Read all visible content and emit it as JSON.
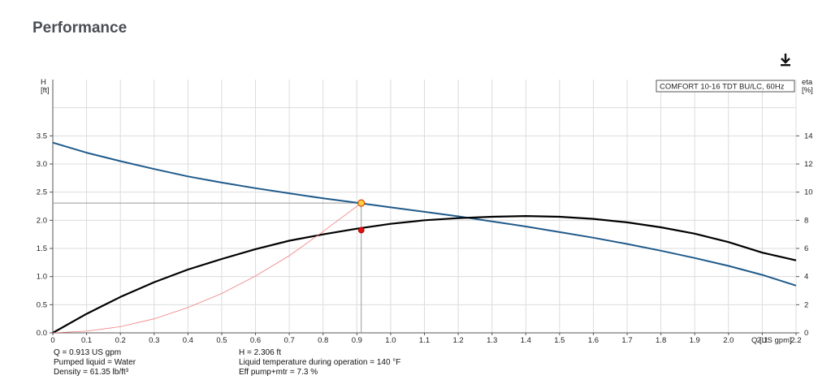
{
  "page": {
    "title": "Performance"
  },
  "icons": {
    "download": "download-icon"
  },
  "chart_data": {
    "type": "line",
    "legend": "COMFORT 10-16 TDT BU/LC, 60Hz",
    "xlabel": "Q [US gpm]",
    "ylabel_left": [
      "H",
      "[ft]"
    ],
    "ylabel_right": [
      "eta",
      "[%]"
    ],
    "xlim": [
      0,
      2.2
    ],
    "ylim_left": [
      0,
      4.5
    ],
    "ylim_right": [
      0,
      18
    ],
    "grid": true,
    "x_ticks": [
      0,
      0.1,
      0.2,
      0.3,
      0.4,
      0.5,
      0.6,
      0.7,
      0.8,
      0.9,
      1.0,
      1.1,
      1.2,
      1.3,
      1.4,
      1.5,
      1.6,
      1.7,
      1.8,
      1.9,
      2.0,
      2.1,
      2.2
    ],
    "x_tick_labels": [
      "0",
      "0.1",
      "0.2",
      "0.3",
      "0.4",
      "0.5",
      "0.6",
      "0.7",
      "0.8",
      "0.9",
      "1.0",
      "1.1",
      "1.2",
      "1.3",
      "1.4",
      "1.5",
      "1.6",
      "1.7",
      "1.8",
      "1.9",
      "2.0",
      "2.1",
      "2.2"
    ],
    "y_left_ticks": [
      0,
      0.5,
      1.0,
      1.5,
      2.0,
      2.5,
      3.0,
      3.5
    ],
    "y_left_tick_labels": [
      "0.0",
      "0.5",
      "1.0",
      "1.5",
      "2.0",
      "2.5",
      "3.0",
      "3.5"
    ],
    "y_right_ticks": [
      0,
      2,
      4,
      6,
      8,
      10,
      12,
      14
    ],
    "y_right_tick_labels": [
      "0",
      "2",
      "4",
      "6",
      "8",
      "10",
      "12",
      "14"
    ],
    "series": [
      {
        "axis": "left",
        "color": "#1f5a8a",
        "x": [
          0,
          0.1,
          0.2,
          0.3,
          0.4,
          0.5,
          0.6,
          0.7,
          0.8,
          0.9,
          1.0,
          1.1,
          1.2,
          1.3,
          1.4,
          1.5,
          1.6,
          1.7,
          1.8,
          1.9,
          2.0,
          2.1,
          2.2
        ],
        "y": [
          3.38,
          3.2,
          3.05,
          2.91,
          2.78,
          2.67,
          2.57,
          2.48,
          2.39,
          2.31,
          2.23,
          2.15,
          2.07,
          1.98,
          1.89,
          1.79,
          1.69,
          1.58,
          1.46,
          1.33,
          1.19,
          1.03,
          0.84
        ]
      },
      {
        "axis": "right",
        "color": "#000000",
        "x": [
          0,
          0.1,
          0.2,
          0.3,
          0.4,
          0.5,
          0.6,
          0.7,
          0.8,
          0.9,
          1.0,
          1.1,
          1.2,
          1.3,
          1.4,
          1.5,
          1.6,
          1.7,
          1.8,
          1.9,
          2.0,
          2.1,
          2.2
        ],
        "y": [
          0,
          1.35,
          2.55,
          3.6,
          4.5,
          5.25,
          5.95,
          6.55,
          7.0,
          7.4,
          7.75,
          8.0,
          8.15,
          8.25,
          8.3,
          8.25,
          8.1,
          7.85,
          7.5,
          7.05,
          6.45,
          5.7,
          5.15
        ]
      },
      {
        "axis": "left",
        "color": "#f08080",
        "x": [
          0,
          0.1,
          0.2,
          0.3,
          0.4,
          0.5,
          0.6,
          0.7,
          0.8,
          0.913
        ],
        "y": [
          0,
          0.03,
          0.11,
          0.25,
          0.45,
          0.7,
          1.01,
          1.37,
          1.8,
          2.306
        ]
      }
    ],
    "duty_point": {
      "q": 0.913,
      "h": 2.306,
      "eta": 7.3
    },
    "annotations": [
      [
        "Q = 0.913 US gpm",
        "Pumped liquid = Water",
        "Density = 61.35 lb/ft³"
      ],
      [
        "H = 2.306 ft",
        "Liquid temperature during operation = 140 °F",
        "Eff pump+mtr = 7.3 %"
      ]
    ]
  }
}
